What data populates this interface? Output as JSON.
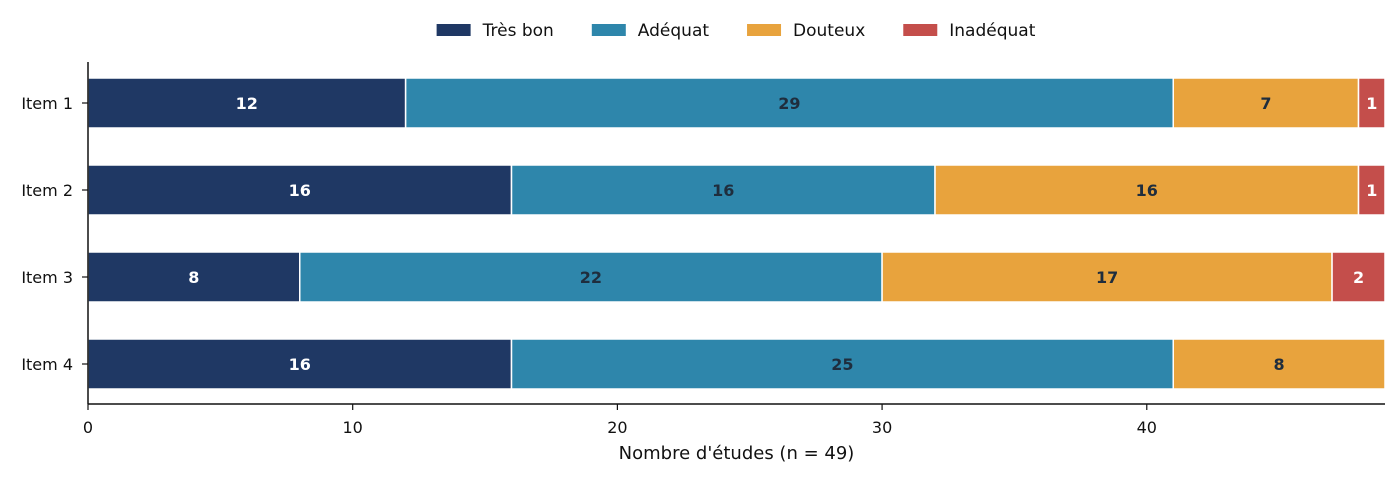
{
  "chart_data": {
    "type": "bar",
    "orientation": "horizontal",
    "stacked": true,
    "categories": [
      "Item 1",
      "Item 2",
      "Item 3",
      "Item 4"
    ],
    "series": [
      {
        "name": "Très bon",
        "color": "#1f3864",
        "label_color": "#ffffff",
        "values": [
          12,
          16,
          8,
          16
        ]
      },
      {
        "name": "Adéquat",
        "color": "#2e86ab",
        "label_color": "#1f2d3d",
        "values": [
          29,
          16,
          22,
          25
        ]
      },
      {
        "name": "Douteux",
        "color": "#e8a33d",
        "label_color": "#1f2d3d",
        "values": [
          7,
          16,
          17,
          8
        ]
      },
      {
        "name": "Inadéquat",
        "color": "#c44e4b",
        "label_color": "#ffffff",
        "values": [
          1,
          1,
          2,
          0
        ]
      }
    ],
    "xlabel": "Nombre d'études (n = 49)",
    "ylabel": "",
    "xlim": [
      0,
      49
    ],
    "xticks": [
      0,
      10,
      20,
      30,
      40
    ],
    "grid": false,
    "legend_position": "top-center"
  }
}
